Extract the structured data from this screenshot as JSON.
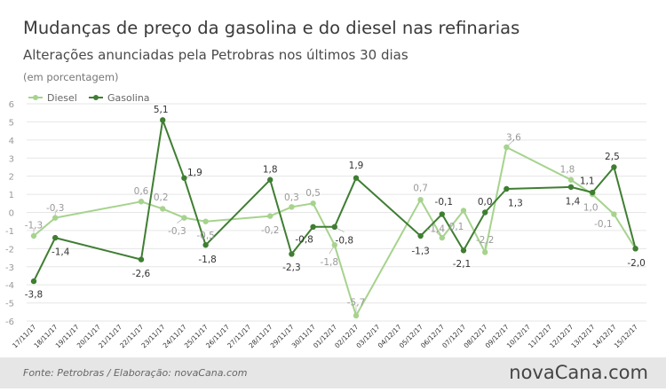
{
  "header": {
    "title": "Mudanças de preço da gasolina e do diesel nas refinarias",
    "subtitle": "Alterações anunciadas pela Petrobras nos últimos 30 dias",
    "unit_note": "(em porcentagem)"
  },
  "footer": {
    "source": "Fonte: Petrobras  / Elaboração: novaCana.com",
    "logo_text": "novaCana.com"
  },
  "colors": {
    "diesel": "#a6d38d",
    "gasolina": "#3f7e32",
    "grid": "#e6e6e6",
    "footer_bg": "#e6e6e6"
  },
  "chart_data": {
    "type": "line",
    "title": "Mudanças de preço da gasolina e do diesel nas refinarias",
    "subtitle": "Alterações anunciadas pela Petrobras nos últimos 30 dias",
    "ylabel": "(em porcentagem)",
    "xlabel": "",
    "ylim": [
      -6,
      6
    ],
    "yticks": [
      -6,
      -5,
      -4,
      -3,
      -2,
      -1,
      0,
      1,
      2,
      3,
      4,
      5,
      6
    ],
    "grid": true,
    "legend_position": "top-left",
    "categories": [
      "17/11/17",
      "18/11/17",
      "19/11/17",
      "20/11/17",
      "21/11/17",
      "22/11/17",
      "23/11/17",
      "24/11/17",
      "25/11/17",
      "26/11/17",
      "27/11/17",
      "28/11/17",
      "29/11/17",
      "30/11/17",
      "01/12/17",
      "02/12/17",
      "03/12/17",
      "04/12/17",
      "05/12/17",
      "06/12/17",
      "07/12/17",
      "08/12/17",
      "09/12/17",
      "10/12/17",
      "11/12/17",
      "12/12/17",
      "13/12/17",
      "14/12/17",
      "15/12/17"
    ],
    "series": [
      {
        "name": "Diesel",
        "points": [
          {
            "x": 0,
            "y": -1.3,
            "label": "-1,3"
          },
          {
            "x": 1,
            "y": -0.3,
            "label": "-0,3"
          },
          {
            "x": 5,
            "y": 0.6,
            "label": "0,6"
          },
          {
            "x": 6,
            "y": 0.2,
            "label": "0,2"
          },
          {
            "x": 7,
            "y": -0.3,
            "label": "-0,3"
          },
          {
            "x": 8,
            "y": -0.5,
            "label": "-0,5"
          },
          {
            "x": 11,
            "y": -0.2,
            "label": "-0,2"
          },
          {
            "x": 12,
            "y": 0.3,
            "label": "0,3"
          },
          {
            "x": 13,
            "y": 0.5,
            "label": "0,5"
          },
          {
            "x": 14,
            "y": -1.8,
            "label": "-1,8"
          },
          {
            "x": 15,
            "y": -5.7,
            "label": "-5,7"
          },
          {
            "x": 18,
            "y": 0.7,
            "label": "0,7"
          },
          {
            "x": 19,
            "y": -1.4,
            "label": "-1,4"
          },
          {
            "x": 20,
            "y": 0.1,
            "label": "0,1"
          },
          {
            "x": 21,
            "y": -2.2,
            "label": "-2,2"
          },
          {
            "x": 22,
            "y": 3.6,
            "label": "3,6"
          },
          {
            "x": 25,
            "y": 1.8,
            "label": "1,8"
          },
          {
            "x": 26,
            "y": 1.0,
            "label": "1,0"
          },
          {
            "x": 27,
            "y": -0.1,
            "label": "-0,1"
          },
          {
            "x": 28,
            "y": -2.0,
            "label": ""
          }
        ]
      },
      {
        "name": "Gasolina",
        "points": [
          {
            "x": 0,
            "y": -3.8,
            "label": "-3,8"
          },
          {
            "x": 1,
            "y": -1.4,
            "label": "-1,4"
          },
          {
            "x": 5,
            "y": -2.6,
            "label": "-2,6"
          },
          {
            "x": 6,
            "y": 5.1,
            "label": "5,1"
          },
          {
            "x": 7,
            "y": 1.9,
            "label": "1,9"
          },
          {
            "x": 8,
            "y": -1.8,
            "label": "-1,8"
          },
          {
            "x": 11,
            "y": 1.8,
            "label": "1,8"
          },
          {
            "x": 12,
            "y": -2.3,
            "label": "-2,3"
          },
          {
            "x": 13,
            "y": -0.8,
            "label": "-0,8"
          },
          {
            "x": 14,
            "y": -0.8,
            "label": "-0,8"
          },
          {
            "x": 15,
            "y": 1.9,
            "label": "1,9"
          },
          {
            "x": 18,
            "y": -1.3,
            "label": "-1,3"
          },
          {
            "x": 19,
            "y": -0.1,
            "label": "-0,1"
          },
          {
            "x": 20,
            "y": -2.1,
            "label": "-2,1"
          },
          {
            "x": 21,
            "y": 0.0,
            "label": "0,0"
          },
          {
            "x": 22,
            "y": 1.3,
            "label": "1,3"
          },
          {
            "x": 25,
            "y": 1.4,
            "label": "1,4"
          },
          {
            "x": 26,
            "y": 1.1,
            "label": "1,1"
          },
          {
            "x": 27,
            "y": 2.5,
            "label": "2,5"
          },
          {
            "x": 28,
            "y": -2.0,
            "label": "-2,0"
          }
        ]
      }
    ]
  }
}
